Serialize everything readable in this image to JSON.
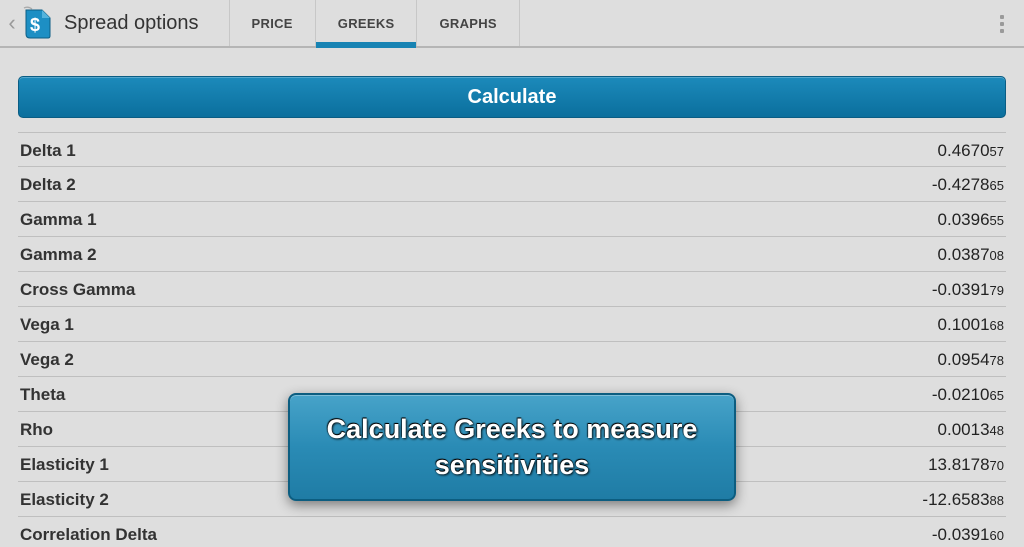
{
  "header": {
    "title": "Spread options",
    "tabs": [
      {
        "label": "PRICE",
        "active": false
      },
      {
        "label": "GREEKS",
        "active": true
      },
      {
        "label": "GRAPHS",
        "active": false
      }
    ]
  },
  "calculate_button": "Calculate",
  "greeks": [
    {
      "label": "Delta 1",
      "main": "0.4670",
      "sub": "57"
    },
    {
      "label": "Delta 2",
      "main": "-0.4278",
      "sub": "65"
    },
    {
      "label": "Gamma 1",
      "main": "0.0396",
      "sub": "55"
    },
    {
      "label": "Gamma 2",
      "main": "0.0387",
      "sub": "08"
    },
    {
      "label": "Cross Gamma",
      "main": "-0.0391",
      "sub": "79"
    },
    {
      "label": "Vega 1",
      "main": "0.1001",
      "sub": "68"
    },
    {
      "label": "Vega 2",
      "main": "0.0954",
      "sub": "78"
    },
    {
      "label": "Theta",
      "main": "-0.0210",
      "sub": "65"
    },
    {
      "label": "Rho",
      "main": "0.0013",
      "sub": "48"
    },
    {
      "label": "Elasticity 1",
      "main": "13.8178",
      "sub": "70"
    },
    {
      "label": "Elasticity 2",
      "main": "-12.6583",
      "sub": "88"
    },
    {
      "label": "Correlation Delta",
      "main": "-0.0391",
      "sub": "60"
    }
  ],
  "overlay": {
    "text": "Calculate Greeks to measure sensitivities"
  },
  "colors": {
    "accent": "#1783b3",
    "button_top": "#1c8abb",
    "button_bottom": "#0b6f9d",
    "bg": "#dedede",
    "divider": "#bfbfbf"
  }
}
